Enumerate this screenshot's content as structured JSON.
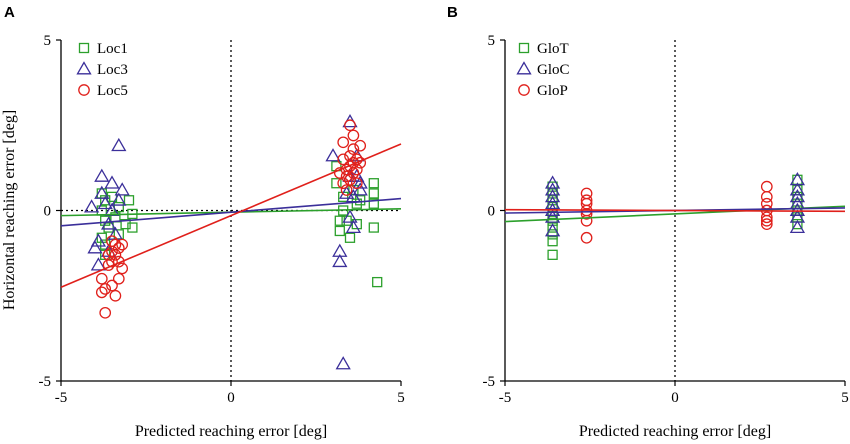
{
  "chart_data": [
    {
      "panel": "A",
      "type": "scatter",
      "xlabel": "Predicted reaching error [deg]",
      "ylabel": "Horizontal reaching error [deg]",
      "xlim": [
        -5,
        5
      ],
      "ylim": [
        -5,
        5
      ],
      "xticks": [
        -5,
        0,
        5
      ],
      "yticks": [
        -5,
        0,
        5
      ],
      "reference_lines": [
        "x=0 dotted",
        "y=0 dotted"
      ],
      "legend_position": "top-left",
      "series": [
        {
          "name": "Loc1",
          "marker": "square",
          "color": "#2ca02c",
          "fit": {
            "slope": 0.02,
            "intercept": -0.05
          },
          "points": [
            [
              -3.8,
              0.5
            ],
            [
              -3.7,
              0.3
            ],
            [
              -3.8,
              0.0
            ],
            [
              -3.7,
              -0.3
            ],
            [
              -3.6,
              -0.5
            ],
            [
              -3.8,
              -0.8
            ],
            [
              -3.7,
              -1.0
            ],
            [
              -3.7,
              -1.3
            ],
            [
              -3.5,
              0.4
            ],
            [
              -3.4,
              -0.2
            ],
            [
              -3.3,
              -0.7
            ],
            [
              -3.3,
              0.1
            ],
            [
              -3.1,
              -0.4
            ],
            [
              -3.0,
              0.3
            ],
            [
              -2.9,
              -0.1
            ],
            [
              -2.9,
              -0.5
            ],
            [
              3.1,
              1.3
            ],
            [
              3.1,
              0.8
            ],
            [
              3.2,
              -0.3
            ],
            [
              3.2,
              -0.6
            ],
            [
              3.3,
              0.4
            ],
            [
              3.3,
              0.0
            ],
            [
              3.4,
              -0.3
            ],
            [
              3.5,
              -0.8
            ],
            [
              3.6,
              0.6
            ],
            [
              3.7,
              0.2
            ],
            [
              3.7,
              -0.4
            ],
            [
              3.8,
              0.3
            ],
            [
              4.2,
              0.8
            ],
            [
              4.2,
              0.5
            ],
            [
              4.2,
              0.2
            ],
            [
              4.2,
              -0.5
            ],
            [
              4.3,
              -2.1
            ]
          ]
        },
        {
          "name": "Loc3",
          "marker": "triangle",
          "color": "#3b2f9a",
          "fit": {
            "slope": 0.08,
            "intercept": -0.05
          },
          "points": [
            [
              -4.1,
              0.1
            ],
            [
              -4.0,
              -1.1
            ],
            [
              -3.9,
              -1.6
            ],
            [
              -3.9,
              -0.9
            ],
            [
              -3.8,
              1.0
            ],
            [
              -3.8,
              0.5
            ],
            [
              -3.7,
              0.2
            ],
            [
              -3.6,
              -0.4
            ],
            [
              -3.6,
              -1.2
            ],
            [
              -3.5,
              0.8
            ],
            [
              -3.5,
              0.0
            ],
            [
              -3.4,
              -0.7
            ],
            [
              -3.3,
              1.9
            ],
            [
              -3.3,
              0.3
            ],
            [
              -3.2,
              0.6
            ],
            [
              3.0,
              1.6
            ],
            [
              3.2,
              -1.2
            ],
            [
              3.2,
              -1.5
            ],
            [
              3.3,
              -4.5
            ],
            [
              3.4,
              0.5
            ],
            [
              3.5,
              2.6
            ],
            [
              3.5,
              1.0
            ],
            [
              3.5,
              -0.2
            ],
            [
              3.6,
              0.4
            ],
            [
              3.6,
              -0.5
            ],
            [
              3.7,
              1.6
            ],
            [
              3.7,
              1.0
            ],
            [
              3.8,
              0.8
            ],
            [
              3.8,
              0.6
            ]
          ]
        },
        {
          "name": "Loc5",
          "marker": "circle",
          "color": "#e0201b",
          "fit": {
            "slope": 0.42,
            "intercept": -0.15
          },
          "points": [
            [
              -3.8,
              -2.0
            ],
            [
              -3.8,
              -2.4
            ],
            [
              -3.7,
              -2.3
            ],
            [
              -3.7,
              -3.0
            ],
            [
              -3.6,
              -1.3
            ],
            [
              -3.6,
              -1.6
            ],
            [
              -3.5,
              -0.9
            ],
            [
              -3.5,
              -1.2
            ],
            [
              -3.5,
              -1.5
            ],
            [
              -3.5,
              -2.2
            ],
            [
              -3.4,
              -1.0
            ],
            [
              -3.4,
              -1.3
            ],
            [
              -3.4,
              -2.5
            ],
            [
              -3.3,
              -1.1
            ],
            [
              -3.3,
              -1.5
            ],
            [
              -3.3,
              -2.0
            ],
            [
              -3.2,
              -1.0
            ],
            [
              -3.2,
              -1.7
            ],
            [
              3.2,
              1.1
            ],
            [
              3.3,
              2.0
            ],
            [
              3.3,
              1.5
            ],
            [
              3.3,
              0.8
            ],
            [
              3.4,
              1.2
            ],
            [
              3.4,
              1.0
            ],
            [
              3.4,
              0.6
            ],
            [
              3.5,
              2.5
            ],
            [
              3.5,
              1.6
            ],
            [
              3.5,
              1.3
            ],
            [
              3.5,
              0.9
            ],
            [
              3.6,
              2.2
            ],
            [
              3.6,
              1.8
            ],
            [
              3.6,
              1.4
            ],
            [
              3.6,
              1.1
            ],
            [
              3.7,
              1.5
            ],
            [
              3.7,
              1.2
            ],
            [
              3.7,
              0.8
            ],
            [
              3.8,
              1.9
            ],
            [
              3.8,
              1.4
            ]
          ]
        }
      ]
    },
    {
      "panel": "B",
      "type": "scatter",
      "xlabel": "Predicted reaching error [deg]",
      "ylabel": "",
      "xlim": [
        -5,
        5
      ],
      "ylim": [
        -5,
        5
      ],
      "xticks": [
        -5,
        0,
        5
      ],
      "yticks": [
        -5,
        0,
        5
      ],
      "reference_lines": [
        "x=0 dotted"
      ],
      "legend_position": "top-left",
      "series": [
        {
          "name": "GloT",
          "marker": "square",
          "color": "#2ca02c",
          "fit": {
            "slope": 0.045,
            "intercept": -0.1
          },
          "points": [
            [
              -3.6,
              0.7
            ],
            [
              -3.6,
              0.5
            ],
            [
              -3.6,
              0.3
            ],
            [
              -3.6,
              0.1
            ],
            [
              -3.6,
              -0.1
            ],
            [
              -3.6,
              -0.3
            ],
            [
              -3.6,
              -0.5
            ],
            [
              -3.6,
              -0.7
            ],
            [
              -3.6,
              -0.9
            ],
            [
              -3.6,
              -1.3
            ],
            [
              3.6,
              0.9
            ],
            [
              3.6,
              0.6
            ],
            [
              3.6,
              0.4
            ],
            [
              3.6,
              0.2
            ],
            [
              3.6,
              0.0
            ],
            [
              3.6,
              -0.2
            ],
            [
              3.6,
              -0.4
            ]
          ]
        },
        {
          "name": "GloC",
          "marker": "triangle",
          "color": "#3b2f9a",
          "fit": {
            "slope": 0.015,
            "intercept": 0.0
          },
          "points": [
            [
              -3.6,
              0.8
            ],
            [
              -3.6,
              0.6
            ],
            [
              -3.6,
              0.4
            ],
            [
              -3.6,
              0.2
            ],
            [
              -3.6,
              0.0
            ],
            [
              -3.6,
              -0.2
            ],
            [
              -3.6,
              -0.6
            ],
            [
              3.6,
              0.9
            ],
            [
              3.6,
              0.6
            ],
            [
              3.6,
              0.4
            ],
            [
              3.6,
              0.2
            ],
            [
              3.6,
              0.0
            ],
            [
              3.6,
              -0.2
            ],
            [
              3.6,
              -0.5
            ]
          ]
        },
        {
          "name": "GloP",
          "marker": "circle",
          "color": "#e0201b",
          "fit": {
            "slope": -0.005,
            "intercept": 0.0
          },
          "points": [
            [
              -2.6,
              0.5
            ],
            [
              -2.6,
              0.3
            ],
            [
              -2.6,
              0.2
            ],
            [
              -2.6,
              0.0
            ],
            [
              -2.6,
              -0.1
            ],
            [
              -2.6,
              -0.3
            ],
            [
              -2.6,
              -0.8
            ],
            [
              2.7,
              0.7
            ],
            [
              2.7,
              0.4
            ],
            [
              2.7,
              0.2
            ],
            [
              2.7,
              0.0
            ],
            [
              2.7,
              -0.2
            ],
            [
              2.7,
              -0.3
            ],
            [
              2.7,
              -0.4
            ]
          ]
        }
      ]
    }
  ]
}
